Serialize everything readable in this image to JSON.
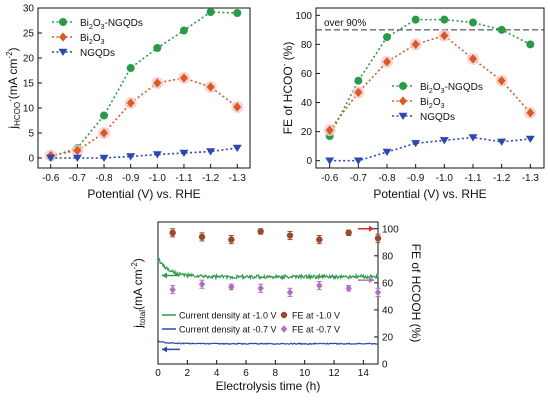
{
  "colors": {
    "bi2o3_ngqds": "#2a9a4a",
    "bi2o3": "#d85a25",
    "ngqds": "#2a48b0",
    "total_1v": "#2a9a4a",
    "total_07v": "#2a48b0",
    "fe_1v": "#9a4a2a",
    "fe_07v": "#b070c0",
    "ref_line": "#333333"
  },
  "chart_data": [
    {
      "type": "line",
      "id": "partial-current-density",
      "xlabel": "Potential (V) vs. RHE",
      "ylabel_main": "j",
      "ylabel_sub": "HCOO",
      "ylabel_sup": "-",
      "ylabel_unit": "(mA cm",
      "ylabel_unit_sup": "-2",
      "ylabel_close": ")",
      "categories": [
        "-0.6",
        "-0.7",
        "-0.8",
        "-0.9",
        "-1.0",
        "-1.1",
        "-1.2",
        "-1.3"
      ],
      "ylim": [
        -2,
        30
      ],
      "yticks": [
        "0",
        "5",
        "10",
        "15",
        "20",
        "25",
        "30"
      ],
      "legend_position": "top-left",
      "series": [
        {
          "name": "Bi2O3-NGQDs",
          "name_main": "Bi",
          "name_sub1": "2",
          "name_mid": "O",
          "name_sub2": "3",
          "name_tail": "-NGQDs",
          "marker": "circle",
          "color_key": "bi2o3_ngqds",
          "values": [
            0.2,
            2.0,
            8.5,
            18.0,
            22.0,
            25.5,
            29.2,
            29.0
          ]
        },
        {
          "name": "Bi2O3",
          "name_main": "Bi",
          "name_sub1": "2",
          "name_mid": "O",
          "name_sub2": "3",
          "name_tail": "",
          "marker": "diamond",
          "color_key": "bi2o3",
          "values": [
            0.5,
            1.5,
            5.0,
            11.0,
            15.0,
            16.0,
            14.2,
            10.2
          ]
        },
        {
          "name": "NGQDs",
          "marker": "triangle-down",
          "color_key": "ngqds",
          "values": [
            0.0,
            0.0,
            0.0,
            0.3,
            0.7,
            1.0,
            1.3,
            2.0
          ]
        }
      ]
    },
    {
      "type": "line",
      "id": "faradaic-efficiency",
      "xlabel": "Potential (V) vs. RHE",
      "ylabel_main": "FE of HCOO",
      "ylabel_sup": "-",
      "ylabel_close": " (%)",
      "categories": [
        "-0.6",
        "-0.7",
        "-0.8",
        "-0.9",
        "-1.0",
        "-1.1",
        "-1.2",
        "-1.3"
      ],
      "ylim": [
        -5,
        105
      ],
      "yticks": [
        "0",
        "20",
        "40",
        "60",
        "80",
        "100"
      ],
      "reference_line": {
        "value": 90,
        "label": "over 90%"
      },
      "legend_position": "center-right",
      "series": [
        {
          "name": "Bi2O3-NGQDs",
          "name_main": "Bi",
          "name_sub1": "2",
          "name_mid": "O",
          "name_sub2": "3",
          "name_tail": "-NGQDs",
          "marker": "circle",
          "color_key": "bi2o3_ngqds",
          "values": [
            17,
            55,
            85,
            97,
            97,
            95,
            90,
            80
          ]
        },
        {
          "name": "Bi2O3",
          "name_main": "Bi",
          "name_sub1": "2",
          "name_mid": "O",
          "name_sub2": "3",
          "name_tail": "",
          "marker": "diamond",
          "color_key": "bi2o3",
          "values": [
            21,
            47,
            68,
            80,
            86,
            70,
            55,
            33
          ]
        },
        {
          "name": "NGQDs",
          "marker": "triangle-down",
          "color_key": "ngqds",
          "values": [
            0,
            0,
            6,
            12,
            14,
            16,
            13,
            15
          ]
        }
      ]
    },
    {
      "type": "scatter",
      "id": "stability-test",
      "xlabel": "Electrolysis time (h)",
      "ylabel_main": "j",
      "ylabel_sub": "total",
      "ylabel_unit": "(mA cm",
      "ylabel_unit_sup": "-2",
      "ylabel_close": ")",
      "ylabel_right": "FE of HCOOH (%)",
      "xlim": [
        0,
        15
      ],
      "xticks": [
        "0",
        "2",
        "4",
        "6",
        "8",
        "10",
        "12",
        "14"
      ],
      "y_left_lim": [
        0,
        35
      ],
      "y_right_lim": [
        0,
        105
      ],
      "y_right_ticks": [
        "0",
        "20",
        "40",
        "60",
        "80",
        "100"
      ],
      "legend_position": "lower-center",
      "series": [
        {
          "name": "Current density at -1.0 V",
          "kind": "line",
          "axis": "left",
          "color_key": "total_1v",
          "shape": "green-decay",
          "start": 26.0,
          "level": 21.5
        },
        {
          "name": "Current density at -0.7 V",
          "kind": "line",
          "axis": "left",
          "color_key": "total_07v",
          "shape": "blue-decay",
          "start": 5.6,
          "level": 5.0
        },
        {
          "name": "FE  at -1.0 V",
          "kind": "points",
          "axis": "right",
          "color_key": "fe_1v",
          "marker": "circle",
          "x": [
            1,
            3,
            5,
            7,
            9,
            11,
            13,
            15
          ],
          "y": [
            97,
            94,
            92,
            98,
            95,
            92,
            97,
            93
          ],
          "err": [
            3,
            3,
            3,
            2,
            3,
            3,
            2,
            3
          ]
        },
        {
          "name": "FE  at -0.7 V",
          "kind": "points",
          "axis": "right",
          "color_key": "fe_07v",
          "marker": "diamond",
          "x": [
            1,
            3,
            5,
            7,
            9,
            11,
            13,
            15
          ],
          "y": [
            55,
            59,
            57,
            56,
            53,
            58,
            56,
            53
          ],
          "err": [
            3,
            3,
            2,
            3,
            3,
            3,
            2,
            3
          ]
        }
      ]
    }
  ]
}
